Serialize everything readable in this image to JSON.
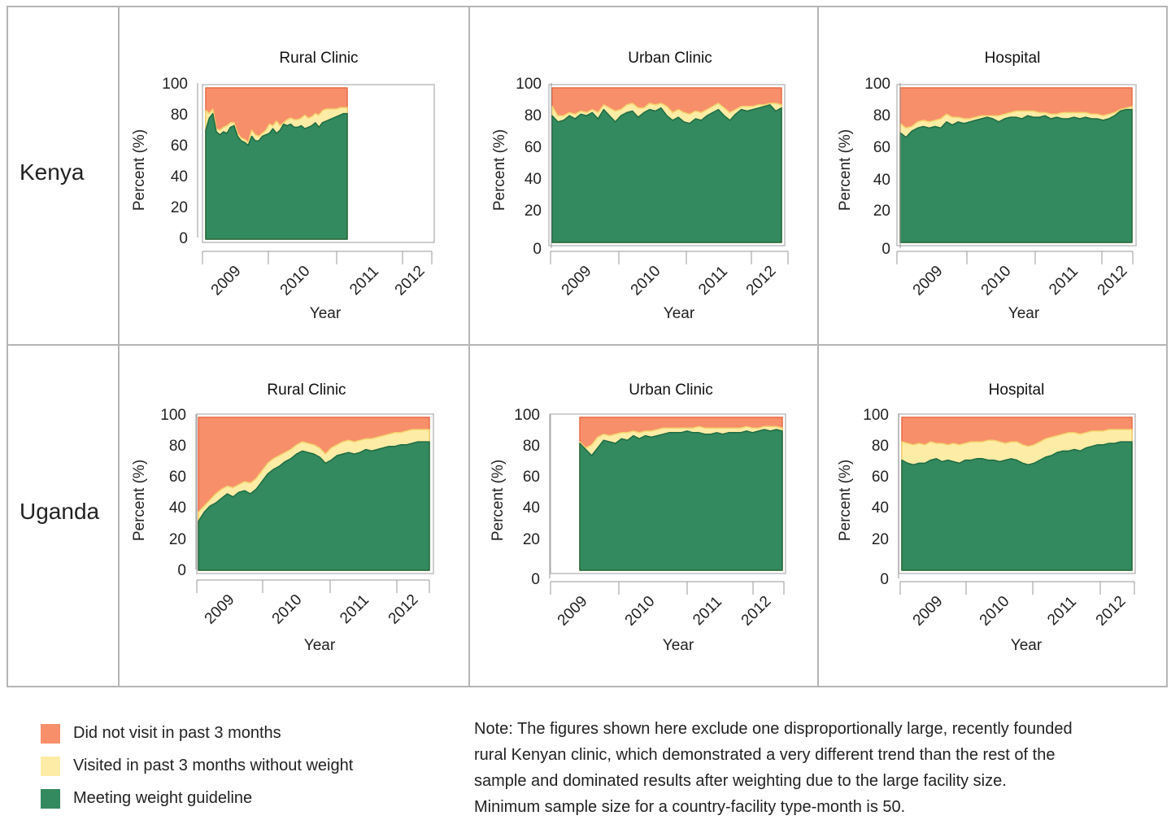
{
  "rows": [
    {
      "label": "Kenya"
    },
    {
      "label": "Uganda"
    }
  ],
  "legend": [
    {
      "label": "Did not visit in past 3 months",
      "color": "#f78f6b"
    },
    {
      "label": "Visited in past 3 months without weight",
      "color": "#fdeca6"
    },
    {
      "label": "Meeting weight guideline",
      "color": "#338a5f"
    }
  ],
  "note": "Note: The figures shown here exclude one disproportionally large, recently founded rural Kenyan clinic, which demonstrated a very different trend than the rest of the sample and dominated results after weighting due to the large facility size. Minimum sample size for a country-facility type-month is 50.",
  "chart_data": [
    {
      "type": "area",
      "country": "Kenya",
      "title": "Rural Clinic",
      "xlabel": "Year",
      "ylabel": "Percent (%)",
      "ylim": [
        0,
        100
      ],
      "x_ticks": [
        "2009",
        "2010",
        "2011",
        "2012"
      ],
      "series": [
        {
          "name": "Meeting weight guideline",
          "values": [
            72,
            80,
            83,
            71,
            69,
            71,
            70,
            74,
            75,
            68,
            65,
            64,
            62,
            68,
            65,
            65,
            68,
            69,
            70,
            73,
            70,
            72,
            76,
            75,
            76,
            74,
            74,
            75,
            73,
            74,
            75,
            77,
            74,
            77,
            78,
            79,
            80,
            81,
            82,
            83,
            83
          ]
        },
        {
          "name": "Visited in past 3 months without weight",
          "values": [
            85,
            83,
            86,
            73,
            72,
            74,
            75,
            77,
            77,
            70,
            67,
            66,
            64,
            72,
            69,
            68,
            70,
            72,
            76,
            75,
            78,
            75,
            77,
            79,
            80,
            79,
            79,
            80,
            82,
            80,
            81,
            83,
            82,
            85,
            86,
            86,
            86,
            86,
            87,
            87,
            87
          ]
        },
        {
          "name": "Did not visit in past 3 months",
          "values": [
            100,
            100,
            100,
            100,
            100,
            100,
            100,
            100,
            100,
            100,
            100,
            100,
            100,
            100,
            100,
            100,
            100,
            100,
            100,
            100,
            100,
            100,
            100,
            100,
            100,
            100,
            100,
            100,
            100,
            100,
            100,
            100,
            100,
            100,
            100,
            100,
            100,
            100,
            100,
            100,
            100
          ]
        }
      ]
    },
    {
      "type": "area",
      "country": "Kenya",
      "title": "Urban Clinic",
      "xlabel": "Year",
      "ylabel": "Percent (%)",
      "ylim": [
        0,
        100
      ],
      "x_ticks": [
        "2009",
        "2010",
        "2011",
        "2012"
      ],
      "series": [
        {
          "name": "Meeting weight guideline",
          "values": [
            82,
            78,
            79,
            82,
            80,
            83,
            82,
            84,
            80,
            86,
            82,
            78,
            82,
            84,
            85,
            81,
            84,
            86,
            85,
            87,
            82,
            79,
            81,
            78,
            77,
            80,
            79,
            82,
            84,
            86,
            82,
            79,
            83,
            86,
            85,
            86,
            87,
            88,
            89,
            85,
            87
          ]
        },
        {
          "name": "Visited in past 3 months without weight",
          "values": [
            88,
            82,
            82,
            84,
            83,
            85,
            84,
            86,
            84,
            89,
            87,
            85,
            86,
            89,
            90,
            87,
            87,
            90,
            89,
            90,
            88,
            84,
            86,
            84,
            83,
            85,
            84,
            86,
            88,
            90,
            87,
            84,
            86,
            88,
            88,
            88,
            89,
            89,
            90,
            90,
            89
          ]
        },
        {
          "name": "Did not visit in past 3 months",
          "values": [
            100,
            100,
            100,
            100,
            100,
            100,
            100,
            100,
            100,
            100,
            100,
            100,
            100,
            100,
            100,
            100,
            100,
            100,
            100,
            100,
            100,
            100,
            100,
            100,
            100,
            100,
            100,
            100,
            100,
            100,
            100,
            100,
            100,
            100,
            100,
            100,
            100,
            100,
            100,
            100,
            100
          ]
        }
      ]
    },
    {
      "type": "area",
      "country": "Kenya",
      "title": "Hospital",
      "xlabel": "Year",
      "ylabel": "Percent (%)",
      "ylim": [
        0,
        100
      ],
      "x_ticks": [
        "2009",
        "2010",
        "2011",
        "2012"
      ],
      "series": [
        {
          "name": "Meeting weight guideline",
          "values": [
            71,
            68,
            72,
            74,
            75,
            74,
            75,
            74,
            78,
            76,
            78,
            77,
            78,
            79,
            80,
            81,
            80,
            78,
            80,
            81,
            81,
            80,
            82,
            81,
            81,
            82,
            80,
            81,
            80,
            80,
            81,
            80,
            81,
            80,
            80,
            79,
            80,
            82,
            85,
            86,
            86
          ]
        },
        {
          "name": "Visited in past 3 months without weight",
          "values": [
            77,
            74,
            75,
            78,
            79,
            78,
            79,
            80,
            83,
            81,
            81,
            80,
            80,
            81,
            82,
            82,
            82,
            82,
            83,
            84,
            85,
            85,
            85,
            85,
            84,
            84,
            83,
            83,
            84,
            84,
            84,
            84,
            84,
            83,
            83,
            82,
            83,
            84,
            86,
            87,
            88
          ]
        },
        {
          "name": "Did not visit in past 3 months",
          "values": [
            100,
            100,
            100,
            100,
            100,
            100,
            100,
            100,
            100,
            100,
            100,
            100,
            100,
            100,
            100,
            100,
            100,
            100,
            100,
            100,
            100,
            100,
            100,
            100,
            100,
            100,
            100,
            100,
            100,
            100,
            100,
            100,
            100,
            100,
            100,
            100,
            100,
            100,
            100,
            100,
            100
          ]
        }
      ]
    },
    {
      "type": "area",
      "country": "Uganda",
      "title": "Rural Clinic",
      "xlabel": "Year",
      "ylabel": "Percent (%)",
      "ylim": [
        0,
        100
      ],
      "x_ticks": [
        "2009",
        "2010",
        "2011",
        "2012"
      ],
      "series": [
        {
          "name": "Meeting weight guideline",
          "values": [
            32,
            38,
            42,
            44,
            47,
            50,
            48,
            51,
            52,
            50,
            53,
            58,
            63,
            66,
            68,
            71,
            73,
            76,
            78,
            77,
            76,
            74,
            70,
            72,
            75,
            76,
            77,
            76,
            77,
            79,
            78,
            79,
            80,
            81,
            81,
            82,
            82,
            83,
            84,
            84,
            84
          ]
        },
        {
          "name": "Visited in past 3 months without weight",
          "values": [
            38,
            42,
            46,
            50,
            53,
            55,
            54,
            56,
            58,
            57,
            60,
            65,
            70,
            73,
            75,
            77,
            79,
            82,
            84,
            83,
            82,
            80,
            76,
            80,
            82,
            84,
            85,
            84,
            85,
            86,
            86,
            87,
            88,
            89,
            90,
            90,
            91,
            92,
            92,
            92,
            92
          ]
        },
        {
          "name": "Did not visit in past 3 months",
          "values": [
            100,
            100,
            100,
            100,
            100,
            100,
            100,
            100,
            100,
            100,
            100,
            100,
            100,
            100,
            100,
            100,
            100,
            100,
            100,
            100,
            100,
            100,
            100,
            100,
            100,
            100,
            100,
            100,
            100,
            100,
            100,
            100,
            100,
            100,
            100,
            100,
            100,
            100,
            100,
            100,
            100
          ]
        }
      ]
    },
    {
      "type": "area",
      "country": "Uganda",
      "title": "Urban Clinic",
      "xlabel": "Year",
      "ylabel": "Percent (%)",
      "ylim": [
        0,
        100
      ],
      "x_ticks": [
        "2009",
        "2010",
        "2011",
        "2012"
      ],
      "series": [
        {
          "name": "Meeting weight guideline",
          "values": [
            83,
            79,
            75,
            80,
            85,
            84,
            83,
            86,
            85,
            88,
            86,
            88,
            87,
            88,
            89,
            90,
            90,
            90,
            91,
            90,
            90,
            89,
            89,
            90,
            89,
            90,
            90,
            90,
            91,
            90,
            91,
            92,
            91,
            92,
            91
          ]
        },
        {
          "name": "Visited in past 3 months without weight",
          "values": [
            84,
            80,
            82,
            87,
            89,
            88,
            89,
            90,
            90,
            91,
            90,
            91,
            91,
            92,
            93,
            93,
            93,
            93,
            93,
            93,
            94,
            93,
            93,
            93,
            93,
            93,
            93,
            93,
            94,
            93,
            93,
            94,
            94,
            94,
            93
          ]
        },
        {
          "name": "Did not visit in past 3 months",
          "values": [
            100,
            100,
            100,
            100,
            100,
            100,
            100,
            100,
            100,
            100,
            100,
            100,
            100,
            100,
            100,
            100,
            100,
            100,
            100,
            100,
            100,
            100,
            100,
            100,
            100,
            100,
            100,
            100,
            100,
            100,
            100,
            100,
            100,
            100,
            100
          ]
        }
      ]
    },
    {
      "type": "area",
      "country": "Uganda",
      "title": "Hospital",
      "xlabel": "Year",
      "ylabel": "Percent (%)",
      "ylim": [
        0,
        100
      ],
      "x_ticks": [
        "2009",
        "2010",
        "2011",
        "2012"
      ],
      "series": [
        {
          "name": "Meeting weight guideline",
          "values": [
            72,
            70,
            69,
            70,
            70,
            72,
            73,
            71,
            72,
            71,
            70,
            72,
            72,
            73,
            73,
            72,
            72,
            71,
            72,
            73,
            72,
            70,
            69,
            70,
            72,
            74,
            75,
            77,
            78,
            78,
            79,
            78,
            80,
            81,
            82,
            82,
            83,
            83,
            84,
            84,
            84
          ]
        },
        {
          "name": "Visited in past 3 months without weight",
          "values": [
            84,
            83,
            82,
            83,
            82,
            84,
            83,
            83,
            82,
            83,
            82,
            83,
            84,
            84,
            84,
            85,
            85,
            84,
            83,
            84,
            84,
            82,
            81,
            82,
            84,
            86,
            87,
            88,
            89,
            90,
            90,
            89,
            90,
            91,
            91,
            91,
            92,
            92,
            92,
            92,
            92
          ]
        },
        {
          "name": "Did not visit in past 3 months",
          "values": [
            100,
            100,
            100,
            100,
            100,
            100,
            100,
            100,
            100,
            100,
            100,
            100,
            100,
            100,
            100,
            100,
            100,
            100,
            100,
            100,
            100,
            100,
            100,
            100,
            100,
            100,
            100,
            100,
            100,
            100,
            100,
            100,
            100,
            100,
            100,
            100,
            100,
            100,
            100,
            100,
            100
          ]
        }
      ]
    }
  ]
}
